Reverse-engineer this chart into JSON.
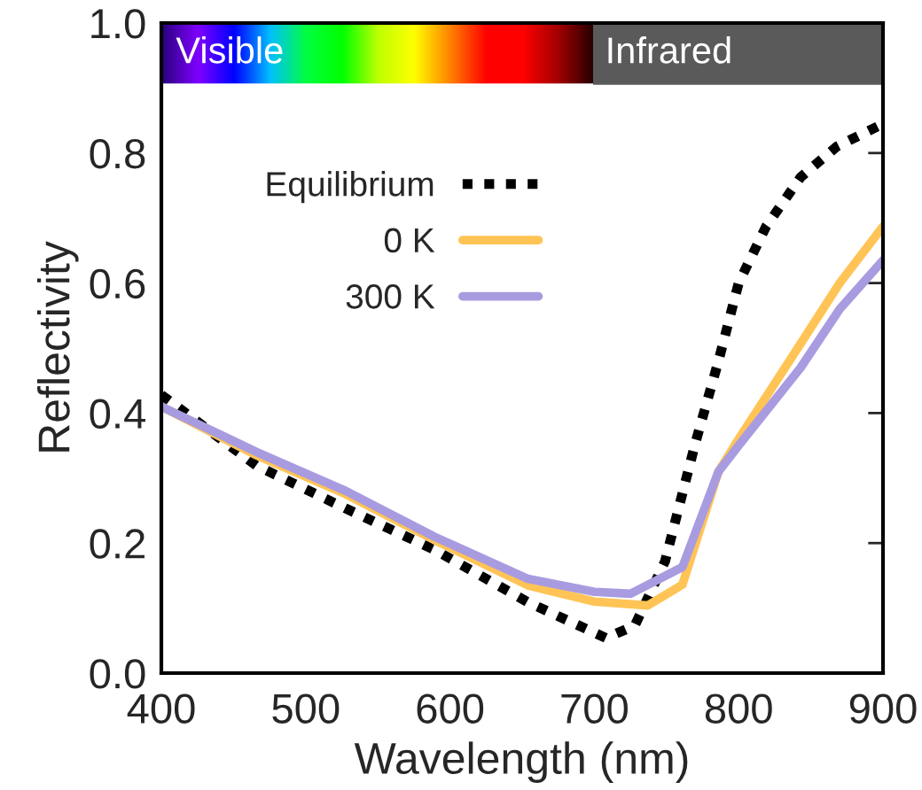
{
  "chart_data": {
    "type": "line",
    "xlabel": "Wavelength (nm)",
    "ylabel": "Reflectivity",
    "xlim": [
      400,
      900
    ],
    "xticks": [
      400,
      500,
      600,
      700,
      800,
      900
    ],
    "ylim": [
      0,
      1.0
    ],
    "yticks": [
      {
        "value": 0,
        "label": "0.0"
      },
      0.2,
      0.4,
      0.6,
      0.8,
      {
        "value": 1.0,
        "label": "1.0"
      }
    ],
    "grid": false,
    "legend": "top left",
    "marker": "none",
    "annotations": [
      "Visible",
      "Infrared"
    ],
    "series": [
      {
        "name": "Equilibrium",
        "color": "#000000",
        "line_style": "dotted",
        "x": [
          400,
          466,
          528,
          589,
          654,
          708,
          728,
          749,
          770,
          786,
          800,
          819,
          843,
          868,
          900
        ],
        "values": [
          0.428,
          0.319,
          0.253,
          0.19,
          0.109,
          0.054,
          0.073,
          0.172,
          0.354,
          0.48,
          0.6,
          0.687,
          0.763,
          0.81,
          0.845
        ]
      },
      {
        "name": "0 K",
        "color": "#ffc455",
        "line_style": "solid",
        "x": [
          400,
          466,
          528,
          589,
          654,
          700,
          737,
          761,
          786,
          800,
          838,
          870,
          900
        ],
        "values": [
          0.41,
          0.335,
          0.275,
          0.205,
          0.135,
          0.11,
          0.104,
          0.136,
          0.31,
          0.36,
          0.49,
          0.6,
          0.687
        ]
      },
      {
        "name": "300 K",
        "color": "#a99be0",
        "line_style": "solid",
        "x": [
          400,
          466,
          528,
          589,
          654,
          700,
          725,
          761,
          786,
          800,
          843,
          870,
          900
        ],
        "values": [
          0.41,
          0.34,
          0.28,
          0.21,
          0.145,
          0.125,
          0.122,
          0.163,
          0.31,
          0.35,
          0.47,
          0.56,
          0.635
        ]
      }
    ]
  }
}
